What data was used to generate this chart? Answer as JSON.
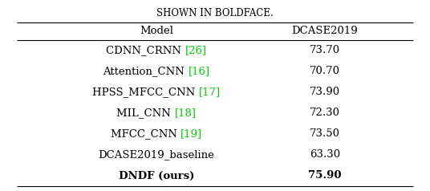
{
  "title_partial": "SHOWN IN BOLDFACE.",
  "col_headers": [
    "Model",
    "DCASE2019"
  ],
  "rows": [
    {
      "model_text": "CDNN_CRNN ",
      "cite": "[26]",
      "score": "73.70",
      "bold": false
    },
    {
      "model_text": "Attention_CNN ",
      "cite": "[16]",
      "score": "70.70",
      "bold": false
    },
    {
      "model_text": "HPSS_MFCC_CNN ",
      "cite": "[17]",
      "score": "73.90",
      "bold": false
    },
    {
      "model_text": "MIL_CNN ",
      "cite": "[18]",
      "score": "72.30",
      "bold": false
    },
    {
      "model_text": "MFCC_CNN ",
      "cite": "[19]",
      "score": "73.50",
      "bold": false
    },
    {
      "model_text": "DCASE2019_baseline",
      "cite": "",
      "score": "63.30",
      "bold": false
    },
    {
      "model_text": "DNDF (ours)",
      "cite": "",
      "score": "75.90",
      "bold": true
    }
  ],
  "bg_color": "#ffffff",
  "text_color": "#000000",
  "cite_color": "#00cc00",
  "font_size": 9.5,
  "header_font_size": 9.5,
  "title_font_size": 8.5,
  "line_color": "#000000"
}
